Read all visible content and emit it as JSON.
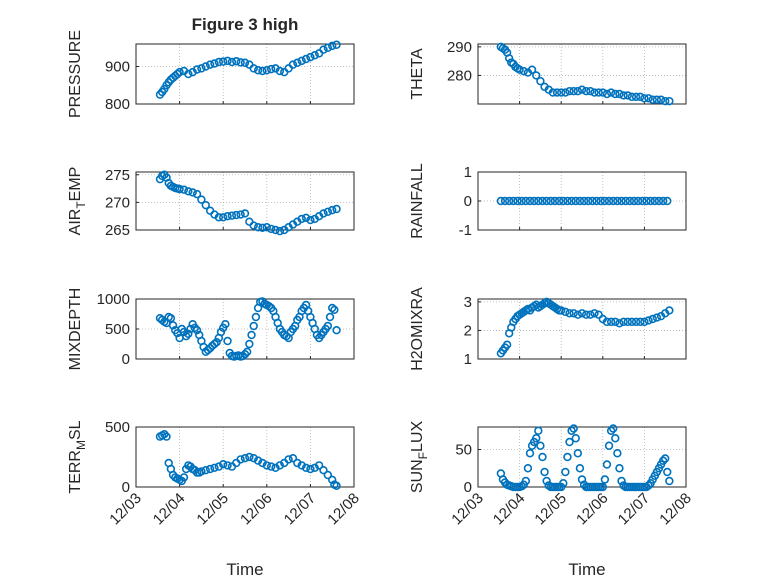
{
  "figure_title": "Figure 3 high",
  "x_axis": {
    "label": "Time",
    "ticks": [
      {
        "v": 0,
        "label": "12/03"
      },
      {
        "v": 1,
        "label": "12/04"
      },
      {
        "v": 2,
        "label": "12/05"
      },
      {
        "v": 3,
        "label": "12/06"
      },
      {
        "v": 4,
        "label": "12/07"
      },
      {
        "v": 5,
        "label": "12/08"
      }
    ]
  },
  "colors": {
    "marker": "#0072BD",
    "axis": "#262626",
    "grid": "#b0b0b0"
  },
  "chart_data": [
    {
      "type": "scatter",
      "ylabel": "PRESSURE",
      "ylim": [
        800,
        960
      ],
      "yticks": [
        {
          "v": 800,
          "label": "800"
        },
        {
          "v": 900,
          "label": "900"
        }
      ],
      "x": [
        0.55,
        0.6,
        0.65,
        0.7,
        0.75,
        0.8,
        0.85,
        0.9,
        0.95,
        1.0,
        1.1,
        1.2,
        1.3,
        1.4,
        1.5,
        1.6,
        1.7,
        1.8,
        1.9,
        2.0,
        2.1,
        2.2,
        2.3,
        2.4,
        2.5,
        2.6,
        2.7,
        2.8,
        2.9,
        3.0,
        3.1,
        3.2,
        3.3,
        3.4,
        3.5,
        3.6,
        3.7,
        3.8,
        3.9,
        4.0,
        4.1,
        4.2,
        4.3,
        4.4,
        4.5,
        4.6
      ],
      "y": [
        825,
        832,
        840,
        850,
        858,
        865,
        870,
        875,
        880,
        885,
        888,
        880,
        885,
        892,
        895,
        900,
        905,
        908,
        912,
        913,
        915,
        912,
        914,
        911,
        910,
        905,
        895,
        890,
        888,
        890,
        893,
        895,
        888,
        885,
        895,
        905,
        910,
        915,
        920,
        925,
        930,
        935,
        945,
        950,
        955,
        958
      ]
    },
    {
      "type": "scatter",
      "ylabel": "THETA",
      "ylim": [
        270,
        291
      ],
      "yticks": [
        {
          "v": 280,
          "label": "280"
        },
        {
          "v": 290,
          "label": "290"
        }
      ],
      "x": [
        0.55,
        0.6,
        0.65,
        0.7,
        0.75,
        0.8,
        0.85,
        0.9,
        0.95,
        1.0,
        1.1,
        1.2,
        1.3,
        1.4,
        1.5,
        1.6,
        1.7,
        1.8,
        1.9,
        2.0,
        2.1,
        2.2,
        2.3,
        2.4,
        2.5,
        2.6,
        2.7,
        2.8,
        2.9,
        3.0,
        3.1,
        3.2,
        3.3,
        3.4,
        3.5,
        3.6,
        3.7,
        3.8,
        3.9,
        4.0,
        4.1,
        4.2,
        4.3,
        4.4,
        4.5,
        4.6
      ],
      "y": [
        290,
        289.5,
        289,
        288,
        286,
        284.5,
        284,
        283,
        282.5,
        282,
        281.5,
        281,
        282,
        280,
        278,
        276,
        275,
        274,
        274,
        274,
        274,
        274.5,
        274.5,
        274.5,
        275,
        274.5,
        274.5,
        274,
        274,
        274,
        273.5,
        274,
        273.5,
        273.5,
        273,
        273,
        272.5,
        272.5,
        272.5,
        272,
        272,
        271.5,
        271.5,
        271.5,
        271,
        271
      ]
    },
    {
      "type": "scatter",
      "ylabel": "AIR_TEMP",
      "ylim": [
        265,
        275.5
      ],
      "yticks": [
        {
          "v": 265,
          "label": "265"
        },
        {
          "v": 270,
          "label": "270"
        },
        {
          "v": 275,
          "label": "275"
        }
      ],
      "x": [
        0.55,
        0.6,
        0.65,
        0.7,
        0.75,
        0.8,
        0.85,
        0.9,
        0.95,
        1.0,
        1.1,
        1.2,
        1.3,
        1.4,
        1.5,
        1.6,
        1.7,
        1.8,
        1.9,
        2.0,
        2.1,
        2.2,
        2.3,
        2.4,
        2.5,
        2.6,
        2.7,
        2.8,
        2.9,
        3.0,
        3.1,
        3.2,
        3.3,
        3.4,
        3.5,
        3.6,
        3.7,
        3.8,
        3.9,
        4.0,
        4.1,
        4.2,
        4.3,
        4.4,
        4.5,
        4.6
      ],
      "y": [
        274.2,
        274.8,
        275,
        274.5,
        273.5,
        273,
        272.8,
        272.6,
        272.5,
        272.4,
        272.3,
        272,
        271.8,
        271.5,
        270.5,
        269.5,
        268.5,
        267.8,
        267.3,
        267.3,
        267.5,
        267.6,
        267.7,
        267.8,
        268,
        266.5,
        265.8,
        265.5,
        265.4,
        265.5,
        265.2,
        265,
        264.8,
        265,
        265.5,
        266,
        266.5,
        267,
        267.2,
        266.8,
        267,
        267.5,
        268,
        268.3,
        268.6,
        268.8
      ]
    },
    {
      "type": "scatter",
      "ylabel": "RAINFALL",
      "ylim": [
        -1,
        1
      ],
      "yticks": [
        {
          "v": -1,
          "label": "-1"
        },
        {
          "v": 0,
          "label": "0"
        },
        {
          "v": 1,
          "label": "1"
        }
      ],
      "x": [
        0.55,
        0.65,
        0.75,
        0.85,
        0.95,
        1.05,
        1.15,
        1.25,
        1.35,
        1.45,
        1.55,
        1.65,
        1.75,
        1.85,
        1.95,
        2.05,
        2.15,
        2.25,
        2.35,
        2.45,
        2.55,
        2.65,
        2.75,
        2.85,
        2.95,
        3.05,
        3.15,
        3.25,
        3.35,
        3.45,
        3.55,
        3.65,
        3.75,
        3.85,
        3.95,
        4.05,
        4.15,
        4.25,
        4.35,
        4.45,
        4.55
      ],
      "y": [
        0,
        0,
        0,
        0,
        0,
        0,
        0,
        0,
        0,
        0,
        0,
        0,
        0,
        0,
        0,
        0,
        0,
        0,
        0,
        0,
        0,
        0,
        0,
        0,
        0,
        0,
        0,
        0,
        0,
        0,
        0,
        0,
        0,
        0,
        0,
        0,
        0,
        0,
        0,
        0,
        0
      ]
    },
    {
      "type": "scatter",
      "ylabel": "MIXDEPTH",
      "ylim": [
        0,
        1000
      ],
      "yticks": [
        {
          "v": 0,
          "label": "0"
        },
        {
          "v": 500,
          "label": "500"
        },
        {
          "v": 1000,
          "label": "1000"
        }
      ],
      "x": [
        0.55,
        0.6,
        0.65,
        0.7,
        0.75,
        0.8,
        0.85,
        0.9,
        0.95,
        1.0,
        1.05,
        1.1,
        1.15,
        1.2,
        1.25,
        1.3,
        1.35,
        1.4,
        1.45,
        1.5,
        1.55,
        1.6,
        1.65,
        1.7,
        1.75,
        1.8,
        1.85,
        1.9,
        1.95,
        2.0,
        2.05,
        2.1,
        2.15,
        2.2,
        2.25,
        2.3,
        2.35,
        2.4,
        2.45,
        2.5,
        2.55,
        2.6,
        2.65,
        2.7,
        2.75,
        2.8,
        2.85,
        2.9,
        2.95,
        3.0,
        3.05,
        3.1,
        3.15,
        3.2,
        3.25,
        3.3,
        3.35,
        3.4,
        3.45,
        3.5,
        3.55,
        3.6,
        3.65,
        3.7,
        3.75,
        3.8,
        3.85,
        3.9,
        3.95,
        4.0,
        4.05,
        4.1,
        4.15,
        4.2,
        4.25,
        4.3,
        4.35,
        4.4,
        4.45,
        4.5,
        4.55,
        4.6
      ],
      "y": [
        680,
        650,
        620,
        600,
        700,
        680,
        560,
        480,
        430,
        350,
        500,
        450,
        380,
        420,
        500,
        580,
        520,
        480,
        400,
        300,
        200,
        120,
        150,
        180,
        220,
        250,
        280,
        350,
        450,
        520,
        580,
        300,
        100,
        50,
        40,
        50,
        60,
        40,
        50,
        80,
        120,
        250,
        400,
        550,
        700,
        850,
        950,
        960,
        920,
        900,
        880,
        850,
        800,
        700,
        600,
        500,
        450,
        400,
        380,
        350,
        450,
        500,
        550,
        650,
        700,
        800,
        850,
        900,
        800,
        700,
        600,
        500,
        400,
        350,
        400,
        450,
        500,
        550,
        700,
        850,
        820,
        480
      ]
    },
    {
      "type": "scatter",
      "ylabel": "H2OMIXRA",
      "ylim": [
        1,
        3.1
      ],
      "yticks": [
        {
          "v": 1,
          "label": "1"
        },
        {
          "v": 2,
          "label": "2"
        },
        {
          "v": 3,
          "label": "3"
        }
      ],
      "x": [
        0.55,
        0.6,
        0.65,
        0.7,
        0.75,
        0.8,
        0.85,
        0.9,
        0.95,
        1.0,
        1.05,
        1.1,
        1.15,
        1.2,
        1.25,
        1.3,
        1.35,
        1.4,
        1.45,
        1.5,
        1.55,
        1.6,
        1.65,
        1.7,
        1.75,
        1.8,
        1.85,
        1.9,
        1.95,
        2.0,
        2.1,
        2.2,
        2.3,
        2.4,
        2.5,
        2.6,
        2.7,
        2.8,
        2.9,
        3.0,
        3.1,
        3.2,
        3.3,
        3.4,
        3.5,
        3.6,
        3.7,
        3.8,
        3.9,
        4.0,
        4.1,
        4.2,
        4.3,
        4.4,
        4.5,
        4.6
      ],
      "y": [
        1.2,
        1.3,
        1.4,
        1.5,
        1.9,
        2.1,
        2.3,
        2.4,
        2.5,
        2.55,
        2.6,
        2.65,
        2.7,
        2.75,
        2.7,
        2.8,
        2.85,
        2.9,
        2.8,
        2.85,
        2.9,
        2.95,
        3.0,
        2.95,
        2.9,
        2.85,
        2.8,
        2.75,
        2.7,
        2.7,
        2.65,
        2.6,
        2.6,
        2.55,
        2.6,
        2.55,
        2.55,
        2.6,
        2.55,
        2.4,
        2.3,
        2.3,
        2.3,
        2.25,
        2.3,
        2.3,
        2.3,
        2.3,
        2.3,
        2.3,
        2.35,
        2.4,
        2.45,
        2.5,
        2.6,
        2.7
      ]
    },
    {
      "type": "scatter",
      "ylabel": "TERR_MSL",
      "ylim": [
        0,
        500
      ],
      "yticks": [
        {
          "v": 0,
          "label": "0"
        },
        {
          "v": 500,
          "label": "500"
        }
      ],
      "x": [
        0.55,
        0.6,
        0.65,
        0.7,
        0.75,
        0.8,
        0.85,
        0.9,
        0.95,
        1.0,
        1.05,
        1.1,
        1.15,
        1.2,
        1.25,
        1.3,
        1.35,
        1.4,
        1.45,
        1.5,
        1.6,
        1.7,
        1.8,
        1.9,
        2.0,
        2.1,
        2.2,
        2.3,
        2.4,
        2.5,
        2.6,
        2.7,
        2.8,
        2.9,
        3.0,
        3.1,
        3.2,
        3.3,
        3.4,
        3.5,
        3.6,
        3.7,
        3.8,
        3.9,
        4.0,
        4.1,
        4.2,
        4.3,
        4.4,
        4.5,
        4.55,
        4.6
      ],
      "y": [
        420,
        430,
        440,
        420,
        200,
        150,
        100,
        80,
        70,
        60,
        50,
        80,
        150,
        180,
        170,
        150,
        140,
        120,
        120,
        130,
        140,
        150,
        160,
        170,
        190,
        180,
        170,
        200,
        230,
        240,
        250,
        240,
        220,
        200,
        180,
        170,
        160,
        180,
        200,
        230,
        240,
        200,
        180,
        160,
        150,
        160,
        180,
        140,
        100,
        60,
        20,
        10
      ]
    },
    {
      "type": "scatter",
      "ylabel": "SUN_FLUX",
      "ylim": [
        0,
        80
      ],
      "yticks": [
        {
          "v": 0,
          "label": "0"
        },
        {
          "v": 50,
          "label": "50"
        }
      ],
      "x": [
        0.55,
        0.6,
        0.65,
        0.7,
        0.75,
        0.8,
        0.85,
        0.9,
        0.95,
        1.0,
        1.05,
        1.1,
        1.15,
        1.2,
        1.25,
        1.3,
        1.35,
        1.4,
        1.45,
        1.5,
        1.55,
        1.6,
        1.65,
        1.7,
        1.75,
        1.8,
        1.85,
        1.9,
        1.95,
        2.0,
        2.05,
        2.1,
        2.15,
        2.2,
        2.25,
        2.3,
        2.35,
        2.4,
        2.45,
        2.5,
        2.55,
        2.6,
        2.65,
        2.7,
        2.75,
        2.8,
        2.85,
        2.9,
        2.95,
        3.0,
        3.05,
        3.1,
        3.15,
        3.2,
        3.25,
        3.3,
        3.35,
        3.4,
        3.45,
        3.5,
        3.55,
        3.6,
        3.65,
        3.7,
        3.75,
        3.8,
        3.85,
        3.9,
        3.95,
        4.0,
        4.05,
        4.1,
        4.15,
        4.2,
        4.25,
        4.3,
        4.35,
        4.4,
        4.45,
        4.5,
        4.55,
        4.6
      ],
      "y": [
        18,
        10,
        6,
        3,
        2,
        1,
        0,
        0,
        0,
        0,
        1,
        3,
        8,
        25,
        45,
        55,
        60,
        65,
        75,
        55,
        40,
        20,
        8,
        2,
        0,
        0,
        0,
        0,
        0,
        0,
        5,
        20,
        40,
        60,
        75,
        78,
        65,
        45,
        25,
        10,
        3,
        0,
        0,
        0,
        0,
        0,
        0,
        0,
        0,
        0,
        10,
        30,
        55,
        75,
        78,
        65,
        45,
        25,
        8,
        2,
        0,
        0,
        0,
        0,
        0,
        0,
        0,
        0,
        0,
        0,
        0,
        2,
        5,
        10,
        15,
        20,
        25,
        30,
        35,
        38,
        20,
        8
      ]
    }
  ]
}
